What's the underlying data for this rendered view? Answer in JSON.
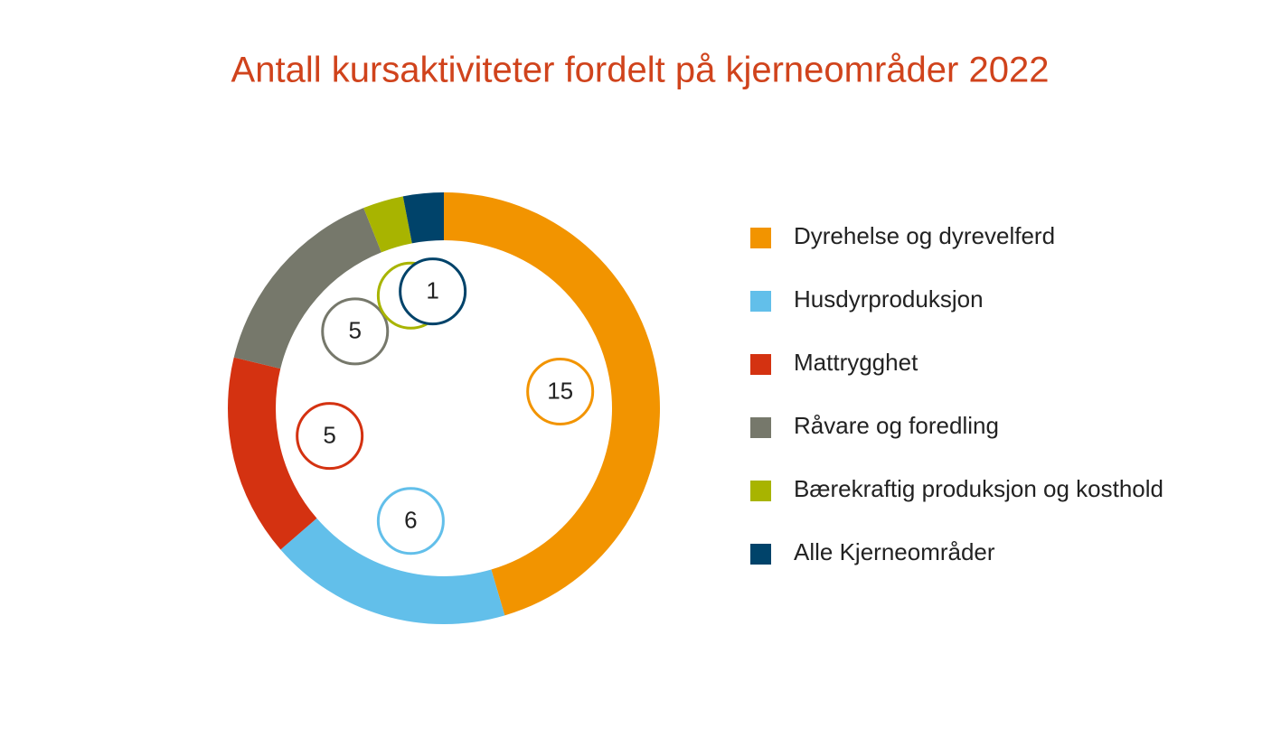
{
  "chart_data": {
    "type": "donut",
    "title": "Antall kursaktiviteter fordelt på kjerneområder 2022",
    "categories": [
      "Dyrehelse og dyrevelferd",
      "Husdyrproduksjon",
      "Mattrygghet",
      "Råvare og foredling",
      "Bærekraftig produksjon og kosthold",
      "Alle Kjerneområder"
    ],
    "values": [
      15,
      6,
      5,
      5,
      1,
      1
    ],
    "colors": [
      "#f29400",
      "#62bfea",
      "#d43211",
      "#76786b",
      "#a8b400",
      "#00436a"
    ],
    "legend": "right"
  }
}
